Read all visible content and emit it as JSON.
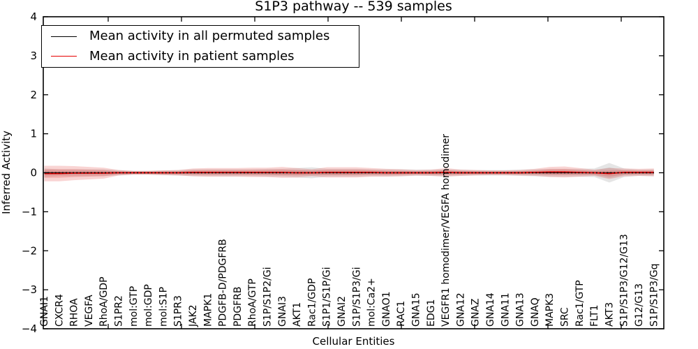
{
  "title": "S1P3 pathway -- 539 samples",
  "axes": {
    "xlabel": "Cellular Entities",
    "ylabel": "Inferred Activity"
  },
  "legend": {
    "entries": [
      {
        "label": "Mean activity in all permuted samples",
        "color": "#000000"
      },
      {
        "label": "Mean activity in patient samples",
        "color": "#e60000"
      }
    ]
  },
  "chart_data": {
    "type": "line",
    "title": "S1P3 pathway -- 539 samples",
    "xlabel": "Cellular Entities",
    "ylabel": "Inferred Activity",
    "ylim": [
      -4,
      4
    ],
    "yticks": [
      -4,
      -3,
      -2,
      -1,
      0,
      1,
      2,
      3,
      4
    ],
    "grid": false,
    "legend_position": "upper left",
    "categories": [
      "GNAI1",
      "CXCR4",
      "RHOA",
      "VEGFA",
      "RhoA/GDP",
      "S1PR2",
      "mol:GTP",
      "mol:GDP",
      "mol:S1P",
      "S1PR3",
      "JAK2",
      "MAPK1",
      "PDGFB-D/PDGFRB",
      "PDGFRB",
      "RhoA/GTP",
      "S1P/S1P2/Gi",
      "GNAI3",
      "AKT1",
      "Rac1/GDP",
      "S1P1/S1P/Gi",
      "GNAI2",
      "S1P/S1P3/Gi",
      "mol:Ca2+",
      "GNAO1",
      "RAC1",
      "GNA15",
      "EDG1",
      "VEGFR1 homodimer/VEGFA homodimer",
      "GNA12",
      "GNAZ",
      "GNA14",
      "GNA11",
      "GNA13",
      "GNAQ",
      "MAPK3",
      "SRC",
      "Rac1/GTP",
      "FLT1",
      "AKT3",
      "S1P/S1P3/G12/G13",
      "G12/G13",
      "S1P/S1P3/Gq"
    ],
    "series": [
      {
        "name": "Mean activity in all permuted samples",
        "color": "#000000",
        "band_color": "#999999",
        "line_style": "solid-with-dots",
        "values": [
          0,
          0,
          0,
          0,
          0,
          0,
          0,
          0,
          0,
          0,
          0,
          0,
          0,
          0,
          0,
          0,
          0,
          0,
          0,
          0,
          0,
          0,
          0,
          0,
          0,
          0,
          0,
          0,
          0,
          0,
          0,
          0,
          0,
          0,
          0,
          0,
          0,
          0,
          0,
          0,
          0,
          0
        ],
        "band_halfwidth": [
          0.11,
          0.09,
          0.09,
          0.09,
          0.09,
          0.07,
          0.05,
          0.05,
          0.06,
          0.07,
          0.09,
          0.09,
          0.09,
          0.09,
          0.09,
          0.1,
          0.1,
          0.12,
          0.14,
          0.1,
          0.1,
          0.1,
          0.09,
          0.09,
          0.09,
          0.08,
          0.08,
          0.09,
          0.08,
          0.07,
          0.07,
          0.07,
          0.08,
          0.09,
          0.1,
          0.1,
          0.1,
          0.11,
          0.25,
          0.11,
          0.08,
          0.09
        ]
      },
      {
        "name": "Mean activity in patient samples",
        "color": "#e60000",
        "band_color": "#e53935",
        "line_style": "solid",
        "values": [
          -0.02,
          -0.02,
          -0.01,
          -0.01,
          -0.01,
          0,
          0,
          0,
          0,
          0,
          0.01,
          0.01,
          0.01,
          0.01,
          0.01,
          0.01,
          0.01,
          0,
          0,
          0.01,
          0.01,
          0.01,
          0.01,
          0,
          0,
          0,
          0,
          0.01,
          0,
          0,
          0,
          0,
          0,
          0.01,
          0.02,
          0.02,
          0.01,
          0,
          -0.02,
          0.01,
          0.01,
          0.01
        ],
        "band_halfwidth": [
          0.2,
          0.2,
          0.18,
          0.16,
          0.14,
          0.07,
          0.05,
          0.05,
          0.06,
          0.07,
          0.1,
          0.11,
          0.11,
          0.11,
          0.12,
          0.12,
          0.14,
          0.12,
          0.09,
          0.13,
          0.13,
          0.13,
          0.11,
          0.1,
          0.09,
          0.07,
          0.08,
          0.11,
          0.08,
          0.07,
          0.06,
          0.06,
          0.07,
          0.09,
          0.13,
          0.14,
          0.11,
          0.08,
          0.14,
          0.1,
          0.09,
          0.1
        ]
      }
    ]
  }
}
